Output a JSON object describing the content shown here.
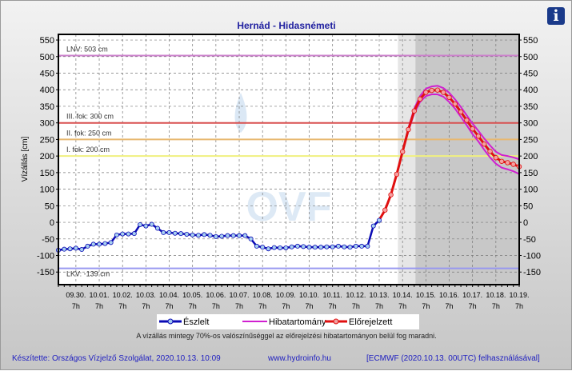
{
  "info_button": "i",
  "legend": {
    "observed": "Észlelt",
    "band": "Hibatartomány",
    "forecast": "Előrejelzett"
  },
  "note": "A vízállás mintegy 70%-os valószínűséggel az előrejelzési hibatartományon belül fog maradni.",
  "footer": {
    "author": "Készítette: Országos Vízjelző Szolgálat, 2020.10.13. 10:09",
    "site": "www.hydroinfo.hu",
    "source": "[ECMWF (2020.10.13. 00UTC) felhasználásával]"
  },
  "watermark": "OVF",
  "colors": {
    "observed": "#0a0ab4",
    "forecast": "#e01010",
    "band": "#d020d0",
    "lnv": "#cc80cc",
    "iii": "#d85050",
    "ii": "#e8b870",
    "i": "#f0f080",
    "lkv": "#9898f0",
    "title": "#2020a0",
    "footer": "#2020c0"
  },
  "chart_data": {
    "type": "line",
    "title": "Hernád - Hidasnémeti",
    "ylabel": "Vízállás [cm]",
    "xlabel": "",
    "ylim": [
      -188,
      567
    ],
    "yticks": [
      -150,
      -100,
      -50,
      0,
      50,
      100,
      150,
      200,
      250,
      300,
      350,
      400,
      450,
      500,
      550
    ],
    "x_unit": "days since 09.30. 7h",
    "xlim": [
      -0.75,
      19
    ],
    "xticks": [
      "09.30.",
      "10.01.",
      "10.02.",
      "10.03.",
      "10.04.",
      "10.05.",
      "10.06.",
      "10.07.",
      "10.08.",
      "10.09.",
      "10.10.",
      "10.11.",
      "10.12.",
      "10.13.",
      "10.14.",
      "10.15.",
      "10.16.",
      "10.17.",
      "10.18.",
      "10.19."
    ],
    "xtick_hour": "7h",
    "grid": true,
    "shaded_ranges": [
      [
        13.8,
        14.55
      ],
      [
        14.55,
        19
      ]
    ],
    "reference_lines": [
      {
        "label": "LNV: 503 cm",
        "value": 503,
        "key": "lnv"
      },
      {
        "label": "III. fok: 300 cm",
        "value": 300,
        "key": "iii"
      },
      {
        "label": "II. fok: 250 cm",
        "value": 250,
        "key": "ii"
      },
      {
        "label": "I. fok: 200 cm",
        "value": 200,
        "key": "i"
      },
      {
        "label": "LKV: -139 cm",
        "value": -139,
        "key": "lkv"
      }
    ],
    "series": [
      {
        "name": "Észlelt",
        "x_start": -0.75,
        "x_step": 0.25,
        "values": [
          -84,
          -81,
          -80,
          -78,
          -82,
          -72,
          -66,
          -66,
          -64,
          -61,
          -38,
          -35,
          -35,
          -34,
          -7,
          -11,
          -6,
          -18,
          -31,
          -31,
          -33,
          -34,
          -36,
          -38,
          -39,
          -37,
          -39,
          -43,
          -42,
          -40,
          -40,
          -40,
          -40,
          -50,
          -72,
          -75,
          -80,
          -76,
          -77,
          -77,
          -74,
          -72,
          -73,
          -75,
          -75,
          -75,
          -74,
          -74,
          -72,
          -74,
          -75,
          -72,
          -72,
          -72,
          -11,
          6
        ]
      },
      {
        "name": "Előrejelzett",
        "x_start": 13.0,
        "x_step": 0.25,
        "values": [
          7,
          37,
          83,
          145,
          213,
          280,
          336,
          372,
          392,
          398,
          399,
          392,
          377,
          357,
          333,
          308,
          282,
          260,
          236,
          214,
          195,
          184,
          180,
          175,
          168
        ]
      },
      {
        "name": "Hibatartomány felső",
        "x_start": 13.0,
        "x_step": 0.25,
        "values": [
          7,
          37,
          83,
          145,
          216,
          285,
          343,
          381,
          403,
          410,
          412,
          405,
          391,
          371,
          348,
          323,
          298,
          276,
          253,
          232,
          213,
          203,
          200,
          196,
          190
        ]
      },
      {
        "name": "Hibatartomány alsó",
        "x_start": 13.0,
        "x_step": 0.25,
        "values": [
          7,
          37,
          83,
          145,
          210,
          275,
          329,
          363,
          381,
          386,
          386,
          379,
          363,
          343,
          318,
          293,
          266,
          244,
          219,
          196,
          177,
          165,
          160,
          154,
          146
        ]
      }
    ]
  }
}
